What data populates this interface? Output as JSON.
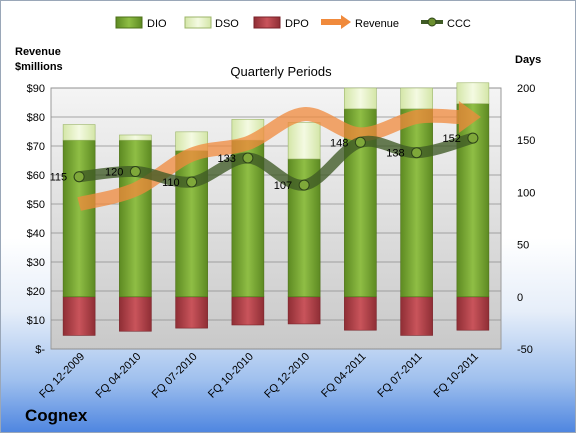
{
  "company": "Cognex",
  "colors": {
    "dio": "#6e9a2a",
    "dso": "#e3efc6",
    "dpo": "#b04048",
    "revenue": "#f08a3c",
    "ccc": "#3f5a25"
  },
  "chart_data": {
    "type": "bar",
    "title": "Quarterly Periods",
    "left_axis_label_line1": "Revenue",
    "left_axis_label_line2": "$millions",
    "right_axis_label": "Days",
    "categories": [
      "FQ 12-2009",
      "FQ 04-2010",
      "FQ 07-2010",
      "FQ 10-2010",
      "FQ 12-2010",
      "FQ 04-2011",
      "FQ 07-2011",
      "FQ 10-2011"
    ],
    "left_ylim": [
      0,
      90
    ],
    "left_ticks": [
      "$-",
      "$10",
      "$20",
      "$30",
      "$40",
      "$50",
      "$60",
      "$70",
      "$80",
      "$90"
    ],
    "right_ylim": [
      -50,
      200
    ],
    "right_ticks": [
      "-50",
      "0",
      "50",
      "100",
      "150",
      "200"
    ],
    "grid": true,
    "legend_position": "top",
    "series": [
      {
        "name": "DIO",
        "type": "stacked-bar",
        "axis": "right",
        "values": [
          150,
          150,
          140,
          150,
          132,
          180,
          180,
          185
        ]
      },
      {
        "name": "DSO",
        "type": "stacked-bar",
        "axis": "right",
        "values": [
          15,
          5,
          18,
          20,
          35,
          20,
          20,
          20
        ]
      },
      {
        "name": "DPO",
        "type": "negative-bar",
        "axis": "right",
        "values": [
          -37,
          -33,
          -30,
          -27,
          -26,
          -32,
          -37,
          -32
        ]
      },
      {
        "name": "Revenue",
        "type": "line",
        "axis": "left",
        "values": [
          50,
          55,
          67,
          71,
          81,
          74,
          80,
          80
        ]
      },
      {
        "name": "CCC",
        "type": "line",
        "axis": "right",
        "values": [
          115,
          120,
          110,
          133,
          107,
          148,
          138,
          152
        ]
      }
    ],
    "ccc_labels": [
      "115",
      "120",
      "110",
      "133",
      "107",
      "148",
      "138",
      "152"
    ]
  }
}
